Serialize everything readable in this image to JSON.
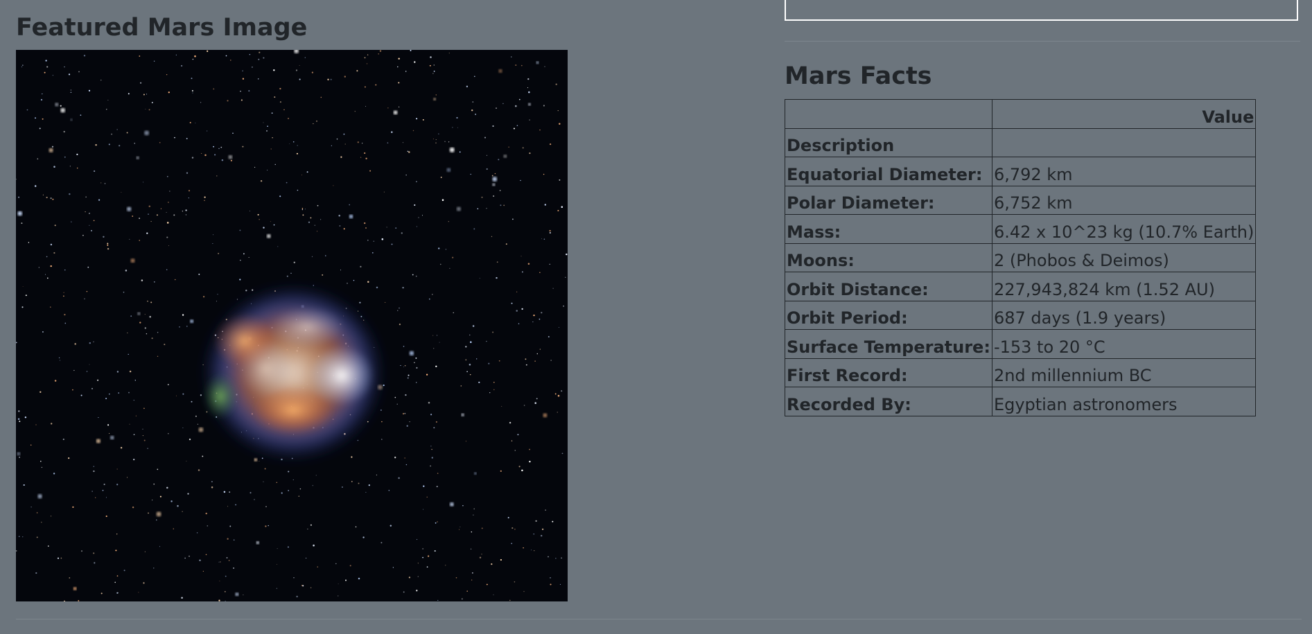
{
  "featured": {
    "title": "Featured Mars Image",
    "image_alt": "featured-mars-image"
  },
  "facts": {
    "title": "Mars Facts",
    "header": {
      "blank": "",
      "value": "Value"
    },
    "rows": [
      {
        "label": "Description",
        "value": ""
      },
      {
        "label": "Equatorial Diameter:",
        "value": "6,792 km"
      },
      {
        "label": "Polar Diameter:",
        "value": "6,752 km"
      },
      {
        "label": "Mass:",
        "value": "6.42 x 10^23 kg (10.7% Earth)"
      },
      {
        "label": "Moons:",
        "value": "2 (Phobos & Deimos)"
      },
      {
        "label": "Orbit Distance:",
        "value": "227,943,824 km (1.52 AU)"
      },
      {
        "label": "Orbit Period:",
        "value": "687 days (1.9 years)"
      },
      {
        "label": "Surface Temperature:",
        "value": "-153 to 20 °C"
      },
      {
        "label": "First Record:",
        "value": "2nd millennium BC"
      },
      {
        "label": "Recorded By:",
        "value": "Egyptian astronomers"
      }
    ]
  },
  "colors": {
    "background": "#6c757d",
    "text": "#212529",
    "image_background": "#04060c"
  }
}
